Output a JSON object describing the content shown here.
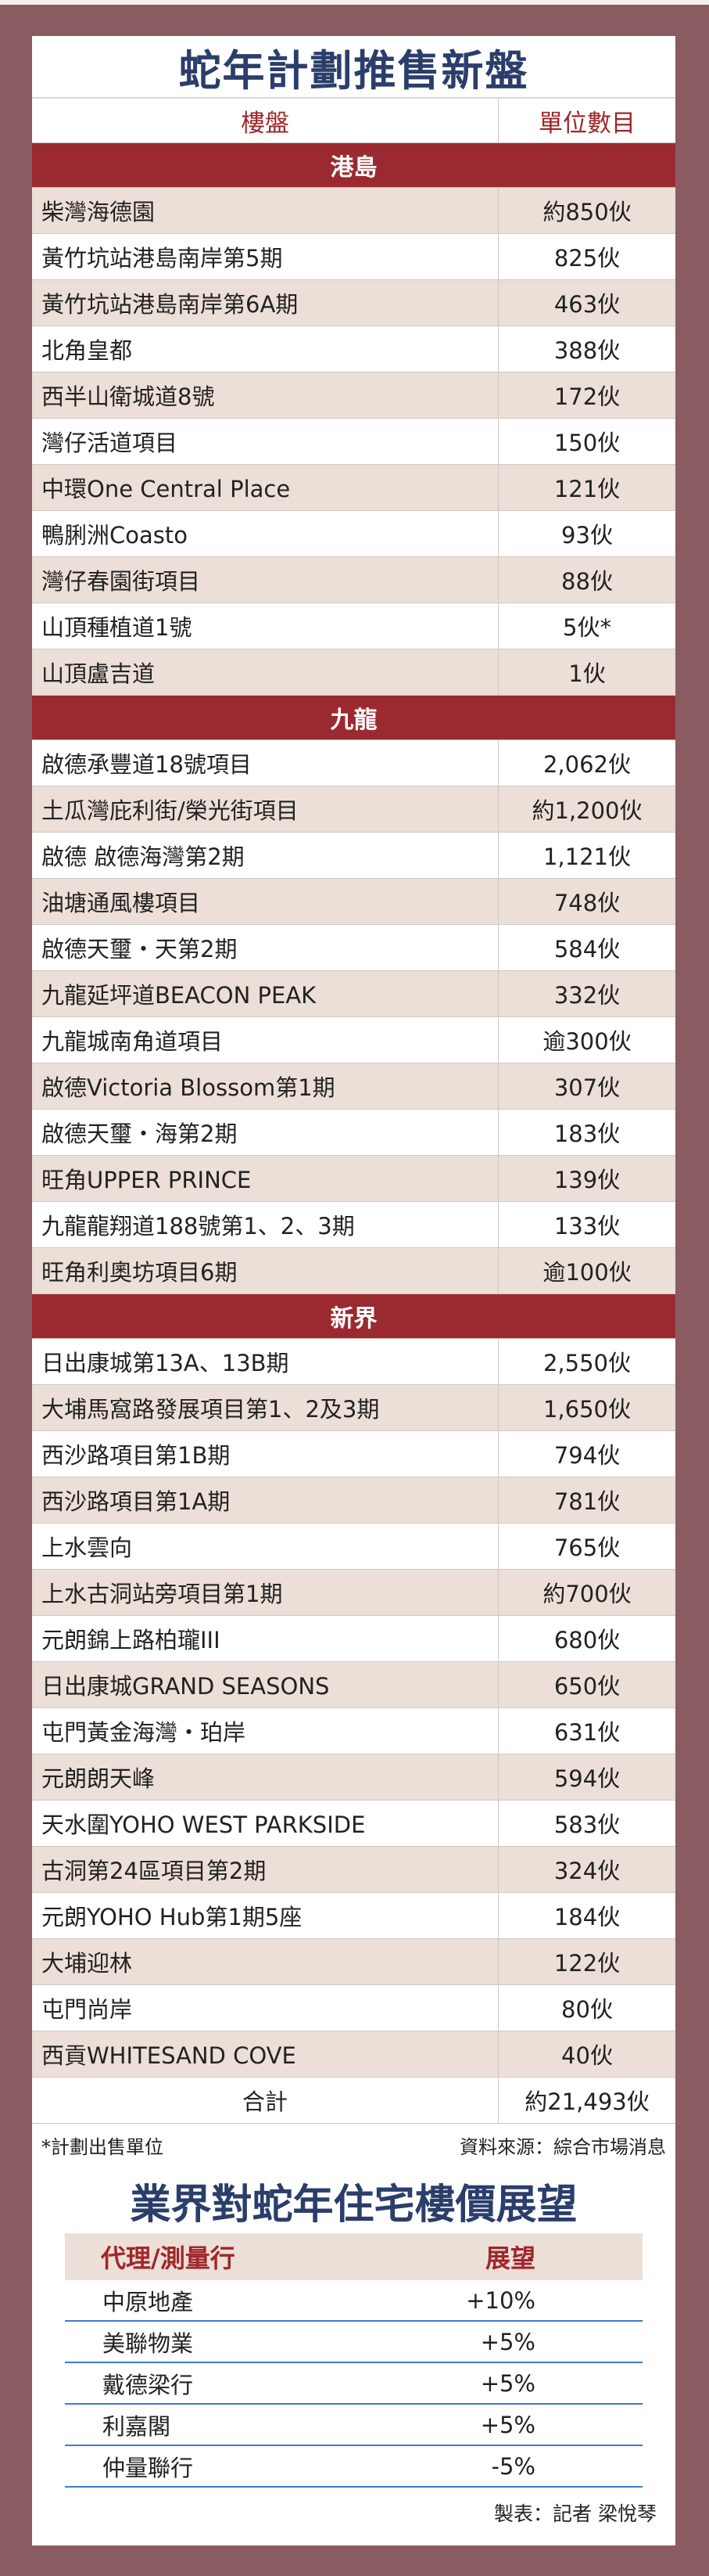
{
  "title": "蛇年計劃推售新盤",
  "table": {
    "headers": [
      "樓盤",
      "單位數目"
    ],
    "sections": [
      {
        "name": "港島",
        "rows": [
          [
            "柴灣海德園",
            "約850伙"
          ],
          [
            "黃竹坑站港島南岸第5期",
            "825伙"
          ],
          [
            "黃竹坑站港島南岸第6A期",
            "463伙"
          ],
          [
            "北角皇都",
            "388伙"
          ],
          [
            "西半山衛城道8號",
            "172伙"
          ],
          [
            "灣仔活道項目",
            "150伙"
          ],
          [
            "中環One Central Place",
            "121伙"
          ],
          [
            "鴨脷洲Coasto",
            "93伙"
          ],
          [
            "灣仔春園街項目",
            "88伙"
          ],
          [
            "山頂種植道1號",
            "5伙*"
          ],
          [
            "山頂盧吉道",
            "1伙"
          ]
        ]
      },
      {
        "name": "九龍",
        "rows": [
          [
            "啟德承豐道18號項目",
            "2,062伙"
          ],
          [
            "土瓜灣庇利街/榮光街項目",
            "約1,200伙"
          ],
          [
            "啟德 啟德海灣第2期",
            "1,121伙"
          ],
          [
            "油塘通風樓項目",
            "748伙"
          ],
          [
            "啟德天璽・天第2期",
            "584伙"
          ],
          [
            "九龍延坪道BEACON PEAK",
            "332伙"
          ],
          [
            "九龍城南角道項目",
            "逾300伙"
          ],
          [
            "啟德Victoria Blossom第1期",
            "307伙"
          ],
          [
            "啟德天璽・海第2期",
            "183伙"
          ],
          [
            "旺角UPPER PRINCE",
            "139伙"
          ],
          [
            "九龍龍翔道188號第1、2、3期",
            "133伙"
          ],
          [
            "旺角利奧坊項目6期",
            "逾100伙"
          ]
        ]
      },
      {
        "name": "新界",
        "rows": [
          [
            "日出康城第13A、13B期",
            "2,550伙"
          ],
          [
            "大埔馬窩路發展項目第1、2及3期",
            "1,650伙"
          ],
          [
            "西沙路項目第1B期",
            "794伙"
          ],
          [
            "西沙路項目第1A期",
            "781伙"
          ],
          [
            "上水雲向",
            "765伙"
          ],
          [
            "上水古洞站旁項目第1期",
            "約700伙"
          ],
          [
            "元朗錦上路柏瓏III",
            "680伙"
          ],
          [
            "日出康城GRAND SEASONS",
            "650伙"
          ],
          [
            "屯門黃金海灣・珀岸",
            "631伙"
          ],
          [
            "元朗朗天峰",
            "594伙"
          ],
          [
            "天水圍YOHO WEST PARKSIDE",
            "583伙"
          ],
          [
            "古洞第24區項目第2期",
            "324伙"
          ],
          [
            "元朗YOHO Hub第1期5座",
            "184伙"
          ],
          [
            "大埔迎林",
            "122伙"
          ],
          [
            "屯門尚岸",
            "80伙"
          ],
          [
            "西貢WHITESAND COVE",
            "40伙"
          ]
        ]
      }
    ],
    "total_label": "合計",
    "total_value": "約21,493伙"
  },
  "footnote": "*計劃出售單位",
  "source": "資料來源：綜合市場消息",
  "outlook": {
    "title": "業界對蛇年住宅樓價展望",
    "headers": [
      "代理/測量行",
      "展望"
    ],
    "rows": [
      [
        "中原地產",
        "+10%"
      ],
      [
        "美聯物業",
        "+5%"
      ],
      [
        "戴德梁行",
        "+5%"
      ],
      [
        "利嘉閣",
        "+5%"
      ],
      [
        "仲量聯行",
        "-5%"
      ]
    ]
  },
  "credit": "製表：記者 梁悅琴",
  "colors": {
    "background": "#8a5c62",
    "section": "#9b2a30",
    "stripe": "#ecdfd7",
    "title": "#2b3e6b",
    "header_text": "#a0262a",
    "rule": "#3b7bd0"
  }
}
